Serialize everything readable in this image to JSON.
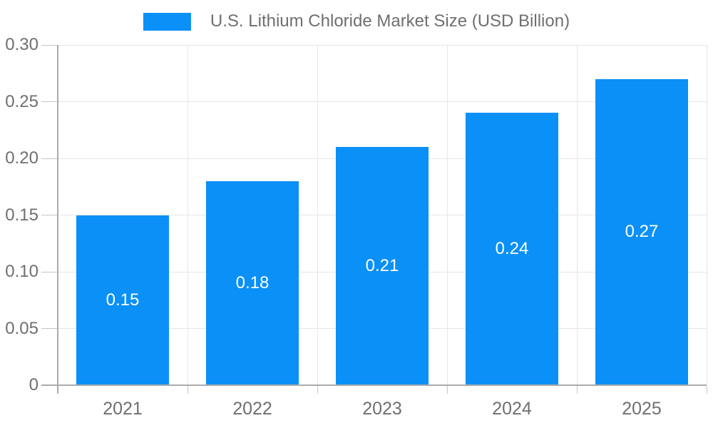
{
  "chart_data": {
    "type": "bar",
    "title": "U.S. Lithium Chloride Market Size (USD Billion)",
    "categories": [
      "2021",
      "2022",
      "2023",
      "2024",
      "2025"
    ],
    "values": [
      0.15,
      0.18,
      0.21,
      0.24,
      0.27
    ],
    "bar_labels": [
      "0.15",
      "0.18",
      "0.21",
      "0.24",
      "0.27"
    ],
    "y_ticks": [
      0,
      0.05,
      0.1,
      0.15,
      0.2,
      0.25,
      0.3
    ],
    "y_tick_labels": [
      "0",
      "0.05",
      "0.10",
      "0.15",
      "0.20",
      "0.25",
      "0.30"
    ],
    "ylim": [
      0,
      0.3
    ],
    "grid": true,
    "legend_position": "top-center",
    "xlabel": "",
    "ylabel": "",
    "colors": {
      "bar": "#0A90F6",
      "bar_label_text": "#FFFFFF",
      "axis_line": "#ABABAB",
      "gridline": "#E6E6E6",
      "tick": "#C6C6C6",
      "label_text": "#6F6F6F",
      "background": "#FFFFFF"
    }
  }
}
